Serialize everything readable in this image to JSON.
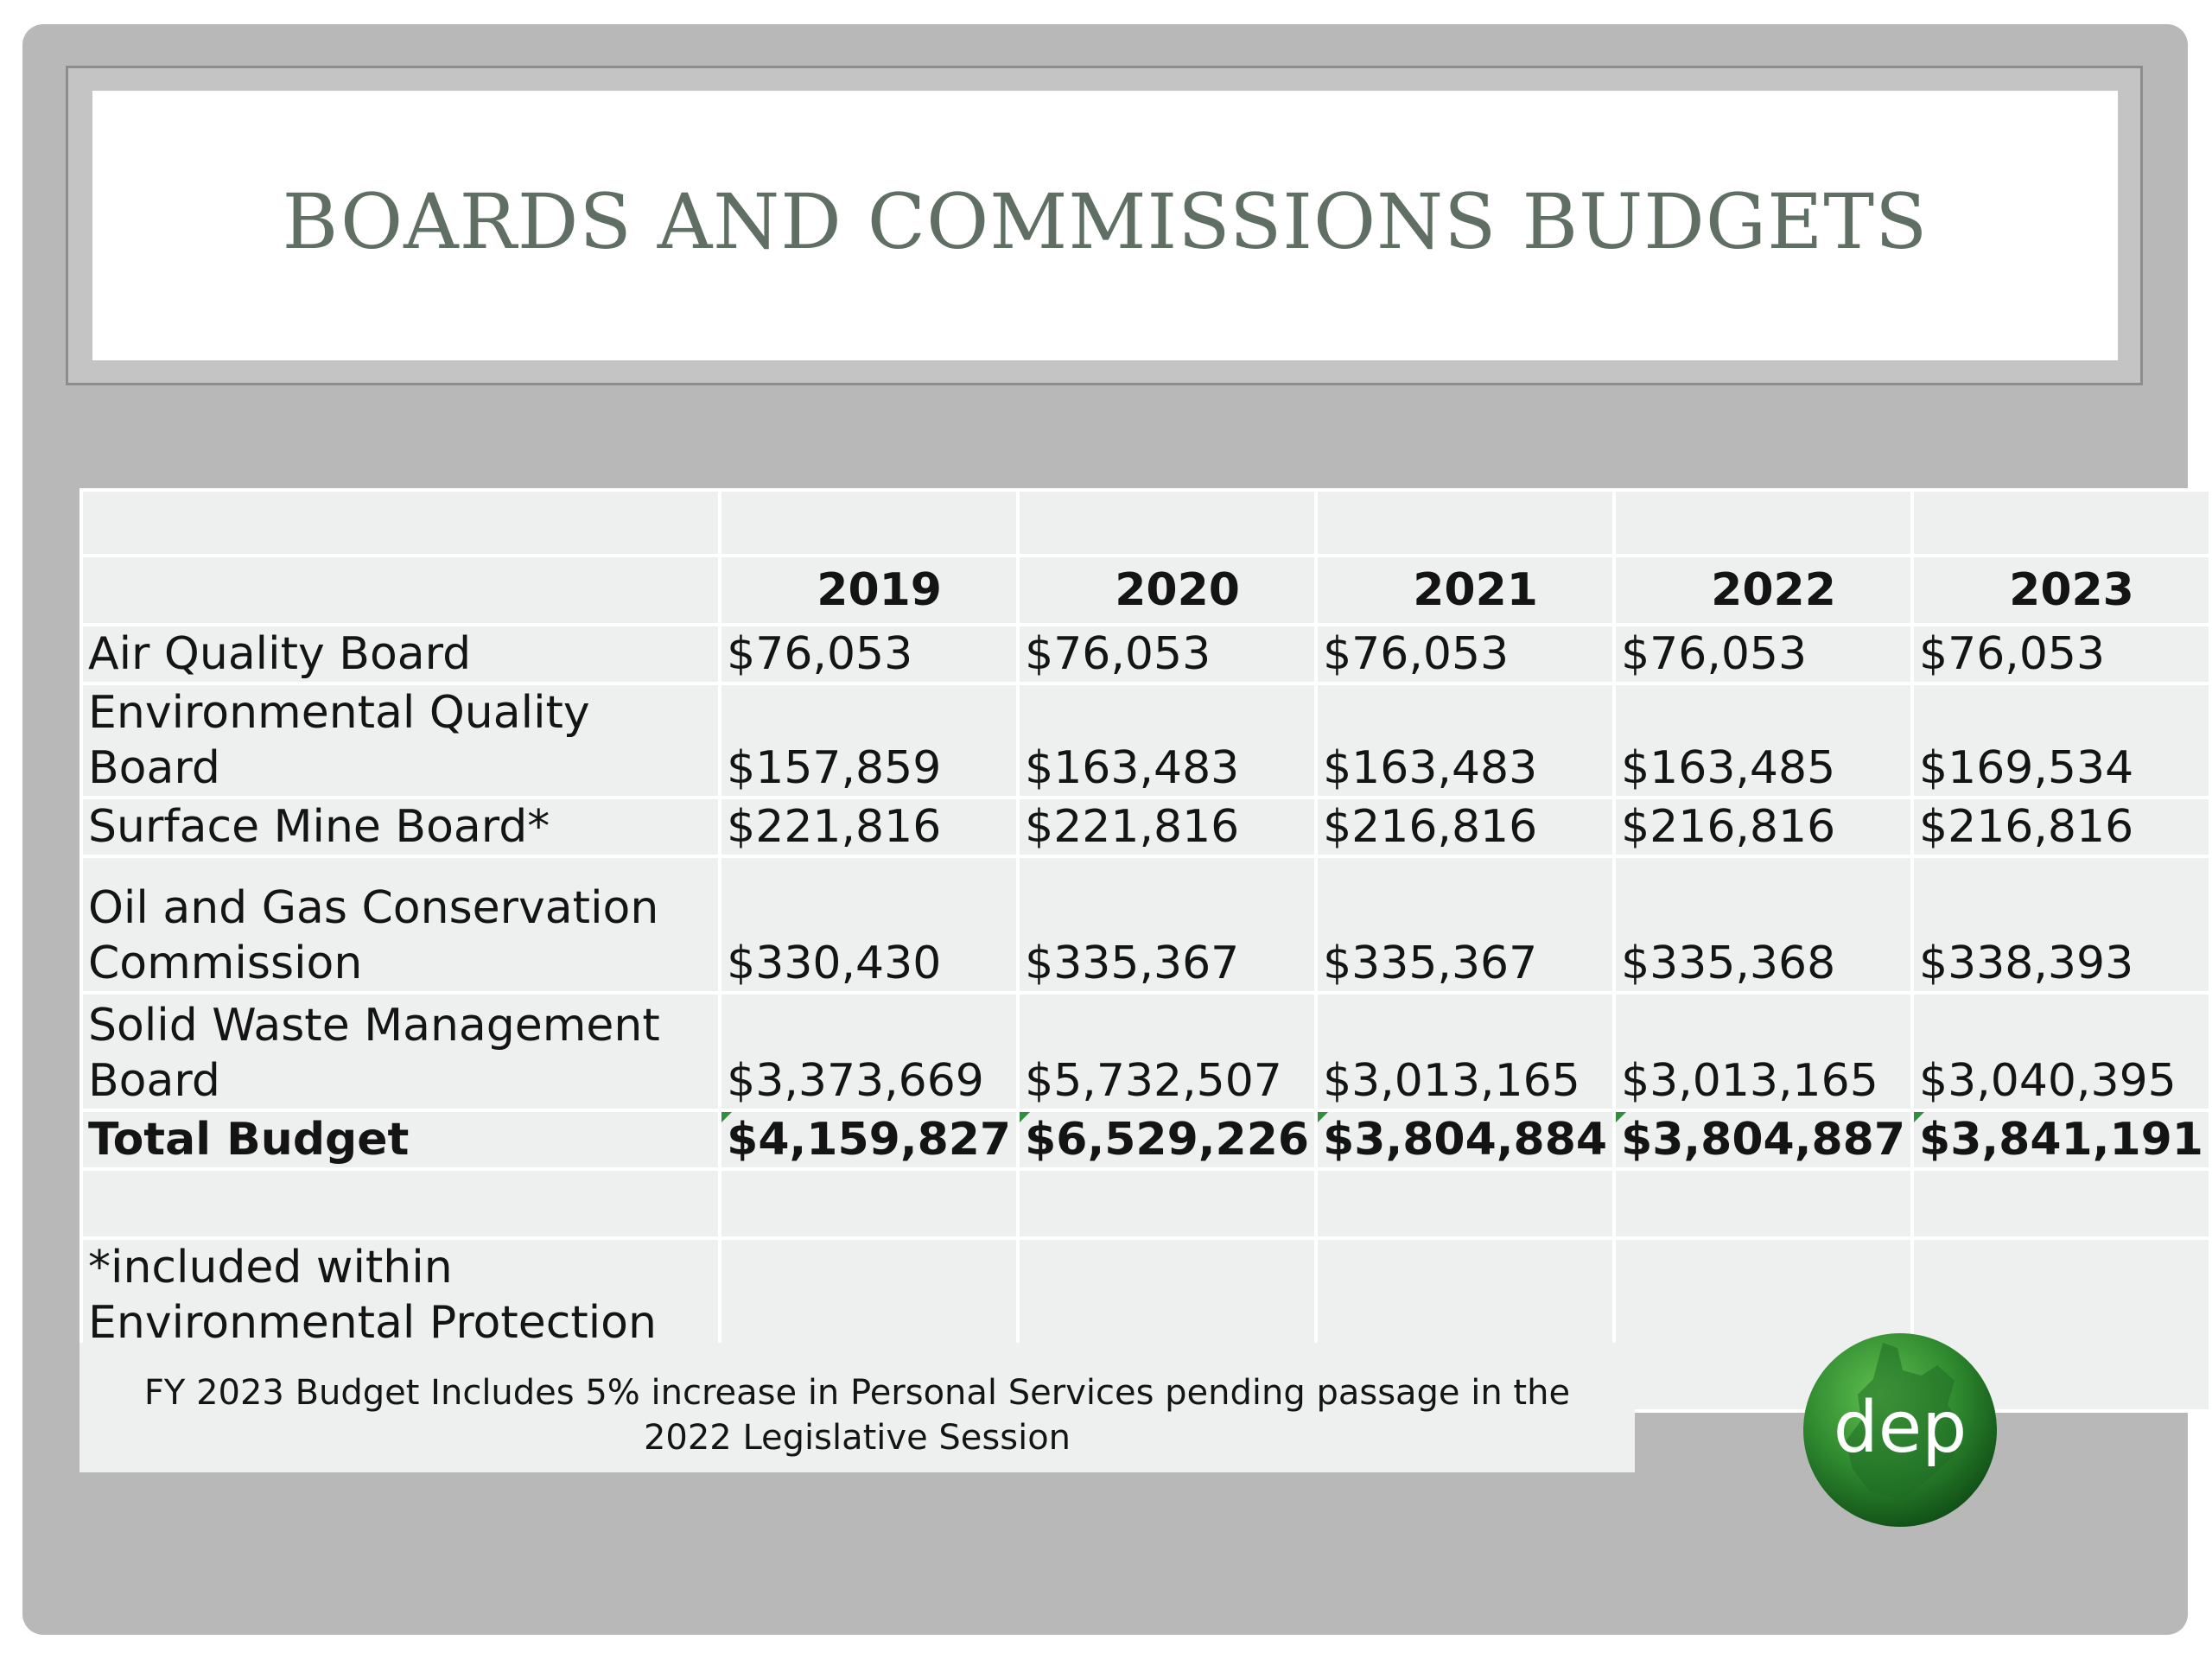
{
  "slide": {
    "title": "BOARDS AND COMMISSIONS BUDGETS"
  },
  "table": {
    "years": [
      "2019",
      "2020",
      "2021",
      "2022",
      "2023"
    ],
    "rows": [
      {
        "label": "Air Quality Board",
        "values": [
          "$76,053",
          "$76,053",
          "$76,053",
          "$76,053",
          "$76,053"
        ]
      },
      {
        "label": "Environmental Quality Board",
        "values": [
          "$157,859",
          "$163,483",
          "$163,483",
          "$163,485",
          "$169,534"
        ]
      },
      {
        "label": "Surface Mine Board*",
        "values": [
          "$221,816",
          "$221,816",
          "$216,816",
          "$216,816",
          "$216,816"
        ]
      },
      {
        "label": "Oil and Gas Conservation Commission",
        "values": [
          "$330,430",
          "$335,367",
          "$335,367",
          "$335,368",
          "$338,393"
        ]
      },
      {
        "label": "Solid Waste Management Board",
        "values": [
          "$3,373,669",
          "$5,732,507",
          "$3,013,165",
          "$3,013,165",
          "$3,040,395"
        ]
      }
    ],
    "total": {
      "label": "Total Budget",
      "values": [
        "$4,159,827",
        "$6,529,226",
        "$3,804,884",
        "$3,804,887",
        "$3,841,191"
      ]
    },
    "note": "*included within Environmental Protection budget"
  },
  "footnote": "FY 2023 Budget Includes 5% increase in Personal Services pending passage in the 2022 Legislative Session",
  "logo": {
    "text": "dep",
    "icon": "dep-logo-icon",
    "colors": {
      "light": "#3f9a3c",
      "dark": "#0f4d16"
    }
  },
  "colors": {
    "title": "#5f6f64",
    "slide_background": "#b8b8b8",
    "table_cell": "#eef0ef"
  }
}
